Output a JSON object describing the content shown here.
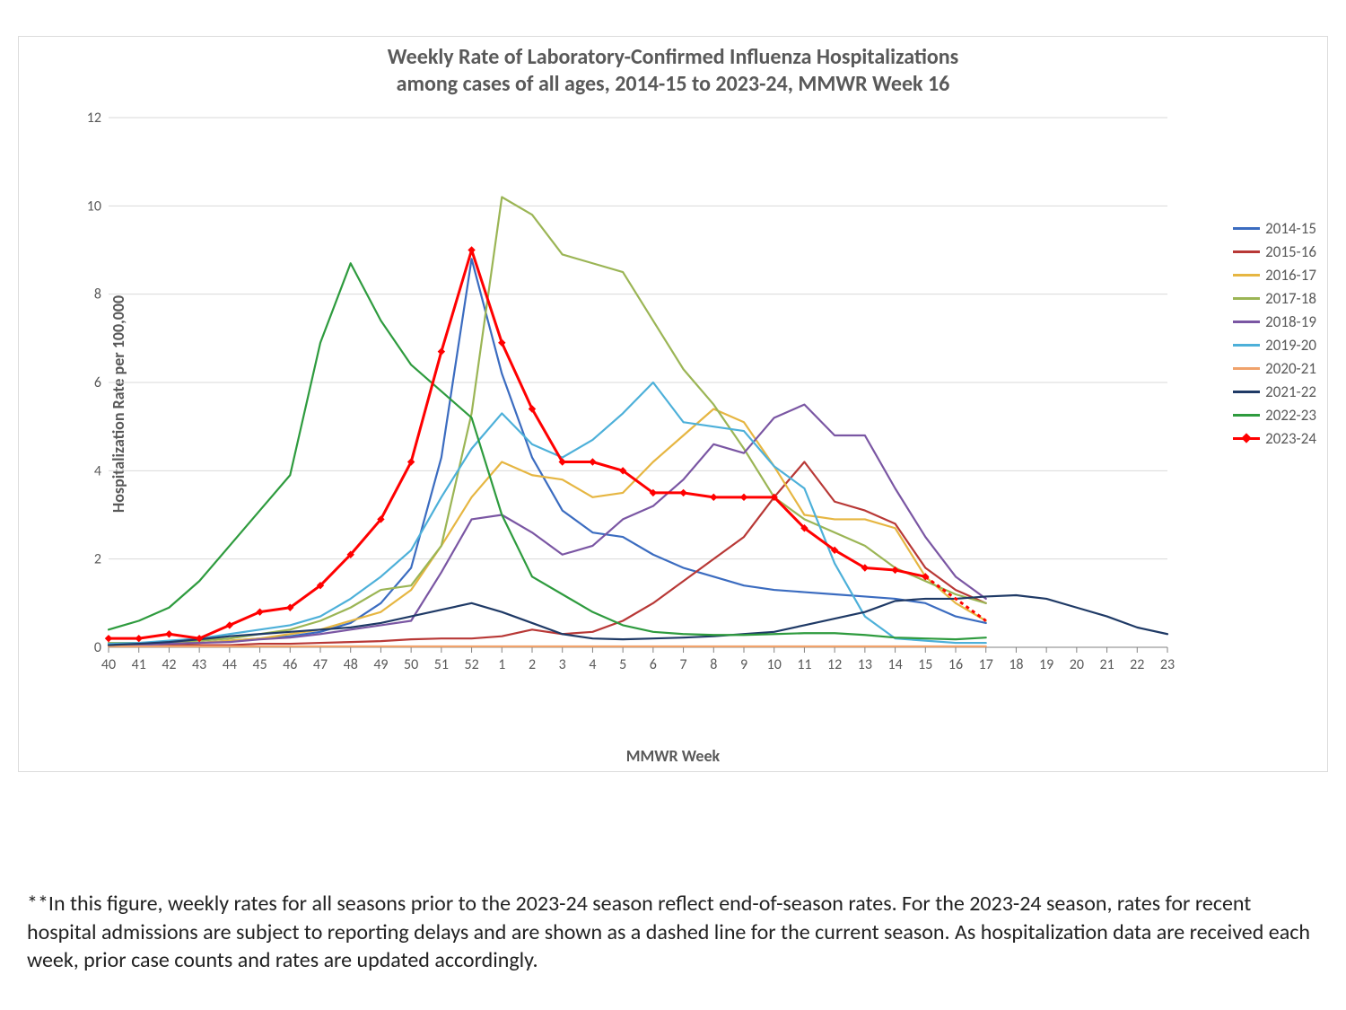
{
  "chart": {
    "type": "line",
    "title_line1": "Weekly Rate of Laboratory-Confirmed Influenza Hospitalizations",
    "title_line2": "among cases of all ages, 2014-15 to 2023-24, MMWR Week 16",
    "title_fontsize": 24,
    "title_color": "#595959",
    "y_axis_label": "Hospitalization Rate per 100,000",
    "x_axis_label": "MMWR Week",
    "axis_label_fontsize": 18,
    "axis_label_color": "#595959",
    "tick_fontsize": 16,
    "tick_color": "#595959",
    "background_color": "#ffffff",
    "border_color": "#dcdcdc",
    "gridline_color": "#d9d9d9",
    "ylim": [
      0,
      12
    ],
    "ytick_step": 2,
    "x_categories": [
      "40",
      "41",
      "42",
      "43",
      "44",
      "45",
      "46",
      "47",
      "48",
      "49",
      "50",
      "51",
      "52",
      "1",
      "2",
      "3",
      "4",
      "5",
      "6",
      "7",
      "8",
      "9",
      "10",
      "11",
      "12",
      "13",
      "14",
      "15",
      "16",
      "17",
      "18",
      "19",
      "20",
      "21",
      "22",
      "23"
    ],
    "series": [
      {
        "name": "2014-15",
        "color": "#3b6cc0",
        "line_width": 2.2,
        "marker": "none",
        "values": {
          "40": 0.1,
          "41": 0.1,
          "42": 0.1,
          "43": 0.1,
          "44": 0.15,
          "45": 0.2,
          "46": 0.25,
          "47": 0.35,
          "48": 0.55,
          "49": 1.0,
          "50": 1.8,
          "51": 4.3,
          "52": 8.8,
          "1": 6.2,
          "2": 4.3,
          "3": 3.1,
          "4": 2.6,
          "5": 2.5,
          "6": 2.1,
          "7": 1.8,
          "8": 1.6,
          "9": 1.4,
          "10": 1.3,
          "11": 1.25,
          "12": 1.2,
          "13": 1.15,
          "14": 1.1,
          "15": 1.0,
          "16": 0.7,
          "17": 0.55
        }
      },
      {
        "name": "2015-16",
        "color": "#b83836",
        "line_width": 2.2,
        "marker": "none",
        "values": {
          "40": 0.05,
          "41": 0.05,
          "42": 0.05,
          "43": 0.05,
          "44": 0.05,
          "45": 0.08,
          "46": 0.08,
          "47": 0.1,
          "48": 0.12,
          "49": 0.14,
          "50": 0.18,
          "51": 0.2,
          "52": 0.2,
          "1": 0.25,
          "2": 0.4,
          "3": 0.3,
          "4": 0.35,
          "5": 0.6,
          "6": 1.0,
          "7": 1.5,
          "8": 2.0,
          "9": 2.5,
          "10": 3.4,
          "11": 4.2,
          "12": 3.3,
          "13": 3.1,
          "14": 2.8,
          "15": 1.8,
          "16": 1.3,
          "17": 1.0
        }
      },
      {
        "name": "2016-17",
        "color": "#e6b642",
        "line_width": 2.2,
        "marker": "none",
        "values": {
          "40": 0.05,
          "41": 0.05,
          "42": 0.08,
          "43": 0.1,
          "44": 0.15,
          "45": 0.2,
          "46": 0.3,
          "47": 0.4,
          "48": 0.6,
          "49": 0.8,
          "50": 1.3,
          "51": 2.3,
          "52": 3.4,
          "1": 4.2,
          "2": 3.9,
          "3": 3.8,
          "4": 3.4,
          "5": 3.5,
          "6": 4.2,
          "7": 4.8,
          "8": 5.4,
          "9": 5.1,
          "10": 4.1,
          "11": 3.0,
          "12": 2.9,
          "13": 2.9,
          "14": 2.7,
          "15": 1.6,
          "16": 1.0,
          "17": 0.6
        }
      },
      {
        "name": "2017-18",
        "color": "#9bb555",
        "line_width": 2.2,
        "marker": "none",
        "values": {
          "40": 0.1,
          "41": 0.1,
          "42": 0.12,
          "43": 0.15,
          "44": 0.2,
          "45": 0.3,
          "46": 0.4,
          "47": 0.6,
          "48": 0.9,
          "49": 1.3,
          "50": 1.4,
          "51": 2.3,
          "52": 5.3,
          "1": 10.2,
          "2": 9.8,
          "3": 8.9,
          "4": 8.7,
          "5": 8.5,
          "6": 7.4,
          "7": 6.3,
          "8": 5.5,
          "9": 4.5,
          "10": 3.4,
          "11": 2.9,
          "12": 2.6,
          "13": 2.3,
          "14": 1.8,
          "15": 1.5,
          "16": 1.2,
          "17": 1.0
        }
      },
      {
        "name": "2018-19",
        "color": "#7a56a3",
        "line_width": 2.2,
        "marker": "none",
        "values": {
          "40": 0.05,
          "41": 0.05,
          "42": 0.08,
          "43": 0.1,
          "44": 0.12,
          "45": 0.18,
          "46": 0.22,
          "47": 0.3,
          "48": 0.4,
          "49": 0.5,
          "50": 0.6,
          "51": 1.7,
          "52": 2.9,
          "1": 3.0,
          "2": 2.6,
          "3": 2.1,
          "4": 2.3,
          "5": 2.9,
          "6": 3.2,
          "7": 3.8,
          "8": 4.6,
          "9": 4.4,
          "10": 5.2,
          "11": 5.5,
          "12": 4.8,
          "13": 4.8,
          "14": 3.6,
          "15": 2.5,
          "16": 1.6,
          "17": 1.1
        }
      },
      {
        "name": "2019-20",
        "color": "#4db0d9",
        "line_width": 2.2,
        "marker": "none",
        "values": {
          "40": 0.08,
          "41": 0.1,
          "42": 0.15,
          "43": 0.2,
          "44": 0.3,
          "45": 0.4,
          "46": 0.5,
          "47": 0.7,
          "48": 1.1,
          "49": 1.6,
          "50": 2.2,
          "51": 3.4,
          "52": 4.5,
          "1": 5.3,
          "2": 4.6,
          "3": 4.3,
          "4": 4.7,
          "5": 5.3,
          "6": 6.0,
          "7": 5.1,
          "8": 5.0,
          "9": 4.9,
          "10": 4.1,
          "11": 3.6,
          "12": 1.9,
          "13": 0.7,
          "14": 0.2,
          "15": 0.15,
          "16": 0.1,
          "17": 0.1
        }
      },
      {
        "name": "2020-21",
        "color": "#f0a26b",
        "line_width": 2.2,
        "marker": "none",
        "values": {
          "40": 0.02,
          "41": 0.02,
          "42": 0.02,
          "43": 0.02,
          "44": 0.02,
          "45": 0.02,
          "46": 0.02,
          "47": 0.02,
          "48": 0.02,
          "49": 0.02,
          "50": 0.02,
          "51": 0.02,
          "52": 0.02,
          "1": 0.02,
          "2": 0.02,
          "3": 0.02,
          "4": 0.02,
          "5": 0.02,
          "6": 0.02,
          "7": 0.02,
          "8": 0.02,
          "9": 0.02,
          "10": 0.02,
          "11": 0.02,
          "12": 0.02,
          "13": 0.02,
          "14": 0.02,
          "15": 0.02,
          "16": 0.02,
          "17": 0.02
        }
      },
      {
        "name": "2021-22",
        "color": "#1f3a66",
        "line_width": 2.2,
        "marker": "none",
        "values": {
          "40": 0.05,
          "41": 0.08,
          "42": 0.12,
          "43": 0.18,
          "44": 0.25,
          "45": 0.3,
          "46": 0.35,
          "47": 0.4,
          "48": 0.45,
          "49": 0.55,
          "50": 0.7,
          "51": 0.85,
          "52": 1.0,
          "1": 0.8,
          "2": 0.55,
          "3": 0.3,
          "4": 0.2,
          "5": 0.18,
          "6": 0.2,
          "7": 0.22,
          "8": 0.25,
          "9": 0.3,
          "10": 0.35,
          "11": 0.5,
          "12": 0.65,
          "13": 0.8,
          "14": 1.05,
          "15": 1.1,
          "16": 1.1,
          "17": 1.15,
          "18": 1.18,
          "19": 1.1,
          "20": 0.9,
          "21": 0.7,
          "22": 0.45,
          "23": 0.3
        }
      },
      {
        "name": "2022-23",
        "color": "#2e9b3e",
        "line_width": 2.2,
        "marker": "none",
        "values": {
          "40": 0.4,
          "41": 0.6,
          "42": 0.9,
          "43": 1.5,
          "44": 2.3,
          "45": 3.1,
          "46": 3.9,
          "47": 6.9,
          "48": 8.7,
          "49": 7.4,
          "50": 6.4,
          "51": 5.8,
          "52": 5.2,
          "1": 3.0,
          "2": 1.6,
          "3": 1.2,
          "4": 0.8,
          "5": 0.5,
          "6": 0.35,
          "7": 0.3,
          "8": 0.28,
          "9": 0.28,
          "10": 0.3,
          "11": 0.32,
          "12": 0.32,
          "13": 0.28,
          "14": 0.22,
          "15": 0.2,
          "16": 0.18,
          "17": 0.22
        }
      },
      {
        "name": "2023-24",
        "color": "#ff0000",
        "line_width": 3.0,
        "marker": "diamond",
        "marker_size": 7,
        "values": {
          "40": 0.2,
          "41": 0.2,
          "42": 0.3,
          "43": 0.2,
          "44": 0.5,
          "45": 0.8,
          "46": 0.9,
          "47": 1.4,
          "48": 2.1,
          "49": 2.9,
          "50": 4.2,
          "51": 6.7,
          "52": 9.0,
          "1": 6.9,
          "2": 5.4,
          "3": 4.2,
          "4": 4.2,
          "5": 4.0,
          "6": 3.5,
          "7": 3.5,
          "8": 3.4,
          "9": 3.4,
          "10": 3.4,
          "11": 2.7,
          "12": 2.2,
          "13": 1.8,
          "14": 1.75,
          "15": 1.6
        },
        "dashed_segment": {
          "from_category": "15",
          "to_category": "17",
          "from_value": 1.6,
          "to_value": 0.6,
          "dash": "4,4"
        }
      }
    ]
  },
  "footnote": "**In this figure, weekly rates for all seasons prior to the 2023-24 season reflect end-of-season rates. For the 2023-24 season, rates for recent hospital admissions are subject to reporting delays and are shown as a dashed line for the current season. As hospitalization data are received each week, prior case counts and rates are updated accordingly.",
  "footnote_fontsize": 24,
  "footnote_color": "#222222"
}
